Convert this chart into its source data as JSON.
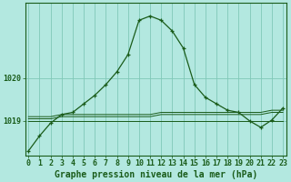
{
  "title": "Graphe pression niveau de la mer (hPa)",
  "background_color": "#b3e8e0",
  "line_color": "#1a5c1a",
  "grid_color": "#80c8b8",
  "x_values": [
    0,
    1,
    2,
    3,
    4,
    5,
    6,
    7,
    8,
    9,
    10,
    11,
    12,
    13,
    14,
    15,
    16,
    17,
    18,
    19,
    20,
    21,
    22,
    23
  ],
  "main_line": [
    1018.3,
    1018.65,
    1018.95,
    1019.15,
    1019.2,
    1019.4,
    1019.6,
    1019.85,
    1020.15,
    1020.55,
    1021.35,
    1021.45,
    1021.35,
    1021.1,
    1020.7,
    1019.85,
    1019.55,
    1019.4,
    1019.25,
    1019.2,
    1019.0,
    1018.85,
    1019.02,
    1019.3
  ],
  "ref_line1": [
    1019.0,
    1019.0,
    1019.0,
    1019.0,
    1019.0,
    1019.0,
    1019.0,
    1019.0,
    1019.0,
    1019.0,
    1019.0,
    1019.0,
    1019.0,
    1019.0,
    1019.0,
    1019.0,
    1019.0,
    1019.0,
    1019.0,
    1019.0,
    1019.0,
    1019.0,
    1019.0,
    1019.0
  ],
  "ref_line2": [
    1019.05,
    1019.05,
    1019.05,
    1019.1,
    1019.1,
    1019.1,
    1019.1,
    1019.1,
    1019.1,
    1019.1,
    1019.1,
    1019.1,
    1019.15,
    1019.15,
    1019.15,
    1019.15,
    1019.15,
    1019.15,
    1019.15,
    1019.15,
    1019.15,
    1019.15,
    1019.2,
    1019.2
  ],
  "ref_line3": [
    1019.1,
    1019.1,
    1019.1,
    1019.15,
    1019.15,
    1019.15,
    1019.15,
    1019.15,
    1019.15,
    1019.15,
    1019.15,
    1019.15,
    1019.2,
    1019.2,
    1019.2,
    1019.2,
    1019.2,
    1019.2,
    1019.2,
    1019.2,
    1019.2,
    1019.2,
    1019.25,
    1019.25
  ],
  "ylim": [
    1018.2,
    1021.75
  ],
  "yticks": [
    1019,
    1020
  ],
  "tick_fontsize": 6,
  "title_fontsize": 7,
  "xlim": [
    -0.3,
    23.3
  ]
}
